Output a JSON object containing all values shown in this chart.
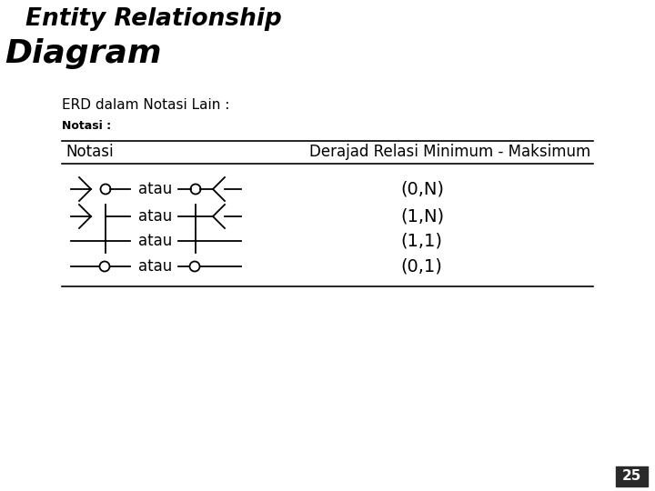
{
  "title_line1": "Entity Relationship",
  "title_line2": "Diagram",
  "subtitle": "ERD dalam Notasi Lain :",
  "notasi_label": "Notasi :",
  "col1_header": "Notasi",
  "col2_header": "Derajad Relasi Minimum - Maksimum",
  "rows": [
    {
      "label": "(0,N)"
    },
    {
      "label": "(1,N)"
    },
    {
      "label": "(1,1)"
    },
    {
      "label": "(0,1)"
    }
  ],
  "atau_label": "atau",
  "page_number": "25",
  "bg_color": "#ffffff",
  "text_color": "#000000",
  "line_color": "#000000",
  "title_color": "#000000",
  "fig_width": 7.2,
  "fig_height": 5.4,
  "dpi": 100
}
